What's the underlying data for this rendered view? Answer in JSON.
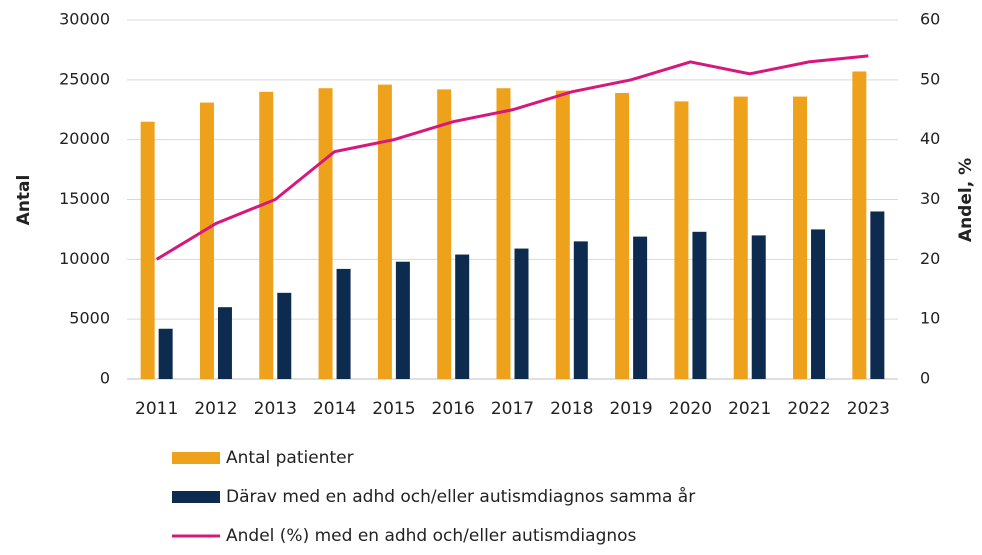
{
  "chart_data": {
    "type": "bar_line",
    "categories": [
      "2011",
      "2012",
      "2013",
      "2014",
      "2015",
      "2016",
      "2017",
      "2018",
      "2019",
      "2020",
      "2021",
      "2022",
      "2023"
    ],
    "series": [
      {
        "name": "Antal patienter",
        "type": "bar",
        "color": "#eea21b",
        "values": [
          21500,
          23100,
          24000,
          24300,
          24600,
          24200,
          24300,
          24100,
          23900,
          23200,
          23600,
          23600,
          25700
        ]
      },
      {
        "name": "Därav med en adhd och/eller autismdiagnos samma år",
        "type": "bar",
        "color": "#0d2b4e",
        "values": [
          4200,
          6000,
          7200,
          9200,
          9800,
          10400,
          10900,
          11500,
          11900,
          12300,
          12000,
          12500,
          14000
        ]
      },
      {
        "name": "Andel (%) med en adhd och/eller autismdiagnos",
        "type": "line",
        "axis": "y2",
        "color": "#d6177b",
        "values": [
          20,
          26,
          30,
          38,
          40,
          43,
          45,
          48,
          50,
          53,
          51,
          53,
          54
        ]
      }
    ],
    "ylabel": "Antal",
    "y2label": "Andel, %",
    "ylim": [
      0,
      30000
    ],
    "yticks": [
      0,
      5000,
      10000,
      15000,
      20000,
      25000,
      30000
    ],
    "y2lim": [
      0,
      60
    ],
    "y2ticks": [
      0,
      10,
      20,
      30,
      40,
      50,
      60
    ],
    "grid": true
  }
}
